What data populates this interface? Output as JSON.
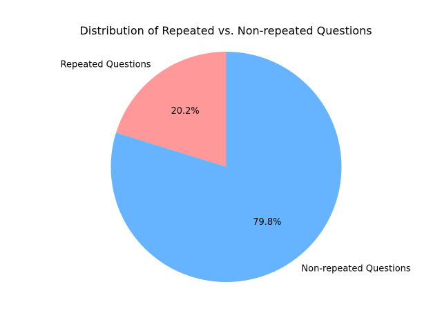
{
  "chart_data": {
    "type": "pie",
    "title": "Distribution of Repeated vs. Non-repeated Questions",
    "start_angle_deg": 90,
    "direction": "counterclockwise",
    "slices": [
      {
        "label": "Repeated Questions",
        "value": 20.2,
        "pct_label": "20.2%",
        "color": "#ff9999"
      },
      {
        "label": "Non-repeated Questions",
        "value": 79.8,
        "pct_label": "79.8%",
        "color": "#66b3ff"
      }
    ]
  }
}
